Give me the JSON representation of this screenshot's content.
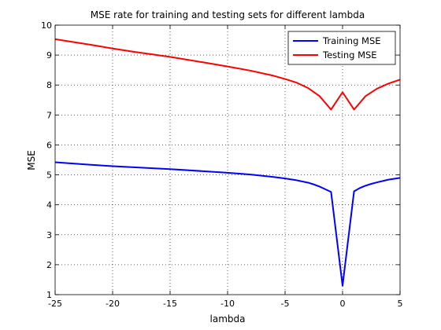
{
  "chart_data": {
    "type": "line",
    "title": "MSE rate for training and testing sets for different lambda",
    "xlabel": "lambda",
    "ylabel": "MSE",
    "xlim": [
      -25,
      5
    ],
    "ylim": [
      1,
      10
    ],
    "xticks": [
      -25,
      -20,
      -15,
      -10,
      -5,
      0,
      5
    ],
    "yticks": [
      1,
      2,
      3,
      4,
      5,
      6,
      7,
      8,
      9,
      10
    ],
    "grid": true,
    "legend_position": "top-right",
    "series": [
      {
        "name": "Training MSE",
        "color": "#0000ff",
        "x": [
          -25,
          -22,
          -20,
          -18,
          -15,
          -12,
          -10,
          -8,
          -6,
          -5,
          -4,
          -3,
          -2.5,
          -2,
          -1.5,
          -1,
          0,
          1,
          1.5,
          2,
          2.5,
          3,
          4,
          5
        ],
        "y": [
          5.42,
          5.34,
          5.29,
          5.25,
          5.19,
          5.12,
          5.07,
          5.01,
          4.93,
          4.88,
          4.82,
          4.74,
          4.68,
          4.61,
          4.52,
          4.43,
          1.3,
          4.45,
          4.56,
          4.64,
          4.7,
          4.75,
          4.84,
          4.9
        ]
      },
      {
        "name": "Testing MSE",
        "color": "#ff0000",
        "x": [
          -25,
          -22,
          -20,
          -18,
          -15,
          -12,
          -10,
          -8,
          -6,
          -5,
          -4,
          -3,
          -2,
          -1,
          0,
          1,
          2,
          3,
          4,
          5
        ],
        "y": [
          9.53,
          9.35,
          9.22,
          9.1,
          8.94,
          8.75,
          8.62,
          8.48,
          8.31,
          8.2,
          8.08,
          7.9,
          7.63,
          7.18,
          7.76,
          7.18,
          7.63,
          7.88,
          8.05,
          8.18
        ]
      }
    ]
  }
}
